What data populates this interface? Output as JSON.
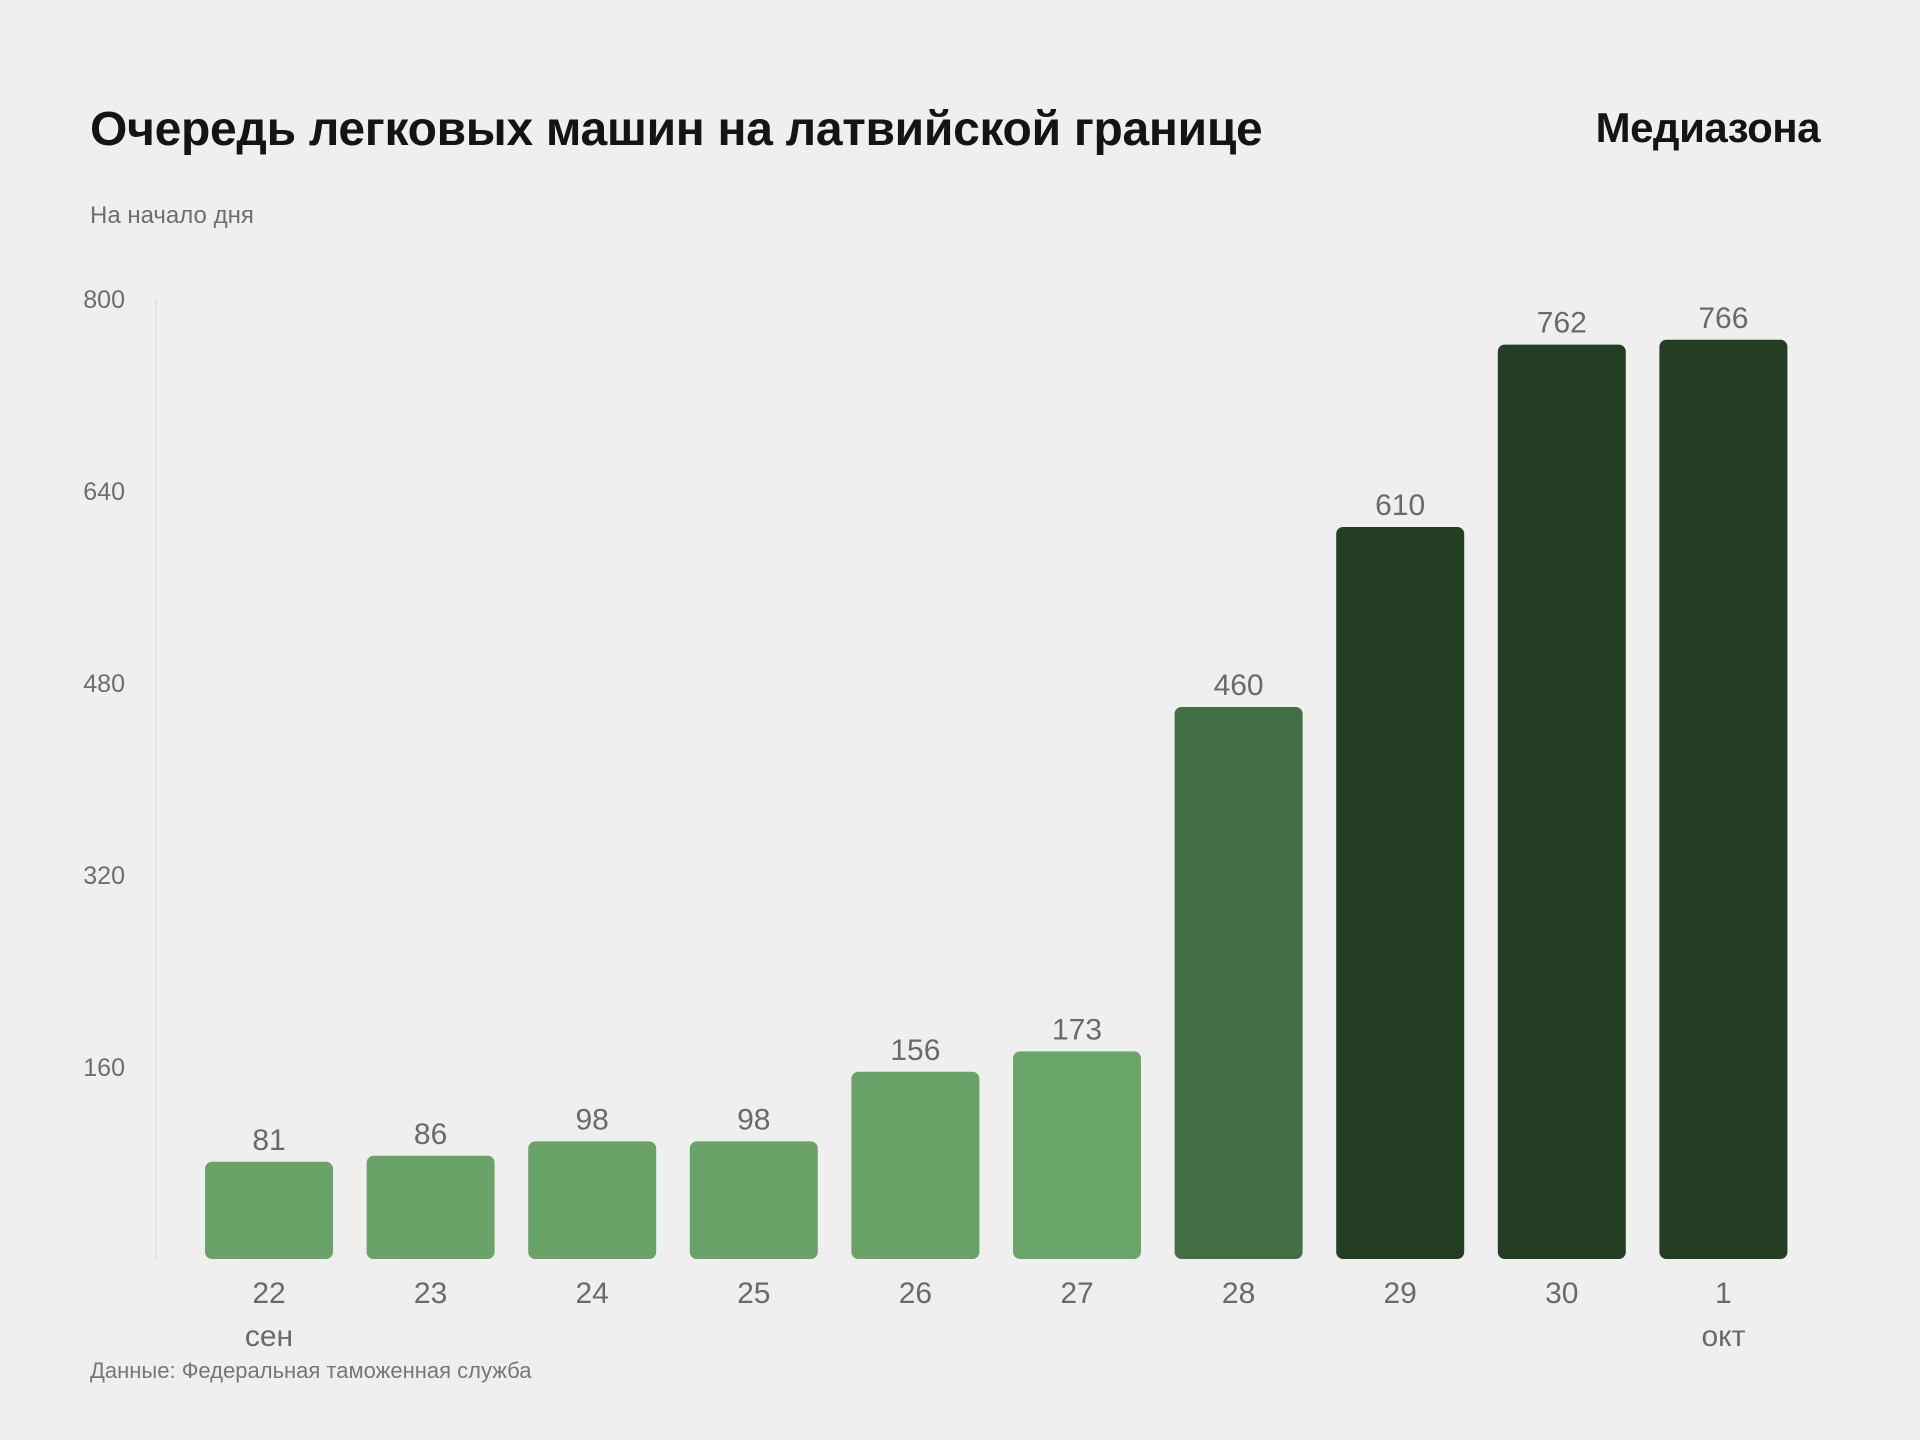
{
  "header": {
    "title": "Очередь легковых машин на латвийской границе",
    "logo": "Медиазона",
    "subtitle": "На начало дня"
  },
  "footer": {
    "source": "Данные: Федеральная таможенная служба"
  },
  "chart_data": {
    "type": "bar",
    "title": "Очередь легковых машин на латвийской границе",
    "subtitle": "На начало дня",
    "categories": [
      "22",
      "23",
      "24",
      "25",
      "26",
      "27",
      "28",
      "29",
      "30",
      "1"
    ],
    "month_labels": [
      {
        "category_index": 0,
        "label": "сен"
      },
      {
        "category_index": 9,
        "label": "окт"
      }
    ],
    "values": [
      81,
      86,
      98,
      98,
      156,
      173,
      460,
      610,
      762,
      766
    ],
    "data_labels": [
      "81",
      "86",
      "98",
      "98",
      "156",
      "173",
      "460",
      "610",
      "762",
      "766"
    ],
    "bar_colors": [
      "#69a368",
      "#69a368",
      "#69a368",
      "#69a368",
      "#69a368",
      "#6aa66a",
      "#436f45",
      "#243e24",
      "#243e24",
      "#243e24"
    ],
    "ylim": [
      0,
      800
    ],
    "yticks": [
      160,
      320,
      480,
      640,
      800
    ],
    "ytick_labels": [
      "160",
      "320",
      "480",
      "640",
      "800"
    ],
    "grid": false,
    "legend": "none",
    "xlabel": "",
    "ylabel": ""
  },
  "colors": {
    "background": "#efefef",
    "title": "#141414",
    "muted_text": "#6e6e6e",
    "light_green": "#69a368",
    "mid_green": "#436f45",
    "dark_green": "#243e24"
  }
}
